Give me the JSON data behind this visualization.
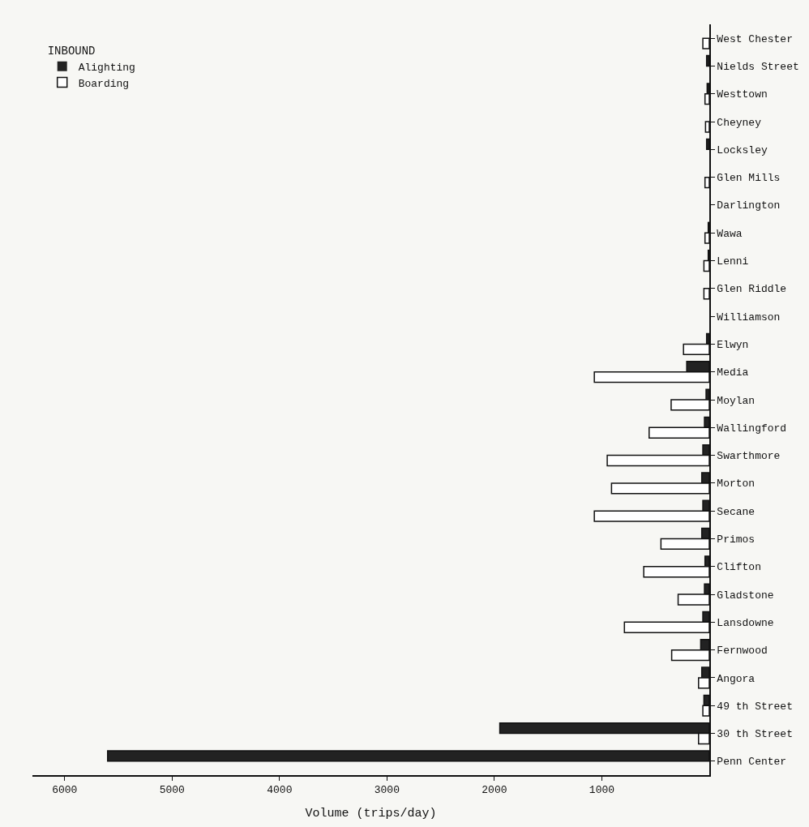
{
  "chart_data": {
    "type": "bar",
    "orientation": "horizontal",
    "legend_title": "INBOUND",
    "xlabel": "Volume (trips/day)",
    "categories": [
      "West Chester",
      "Nields Street",
      "Westtown",
      "Cheyney",
      "Locksley",
      "Glen Mills",
      "Darlington",
      "Wawa",
      "Lenni",
      "Glen Riddle",
      "Williamson",
      "Elwyn",
      "Media",
      "Moylan",
      "Wallingford",
      "Swarthmore",
      "Morton",
      "Secane",
      "Primos",
      "Clifton",
      "Gladstone",
      "Lansdowne",
      "Fernwood",
      "Angora",
      "49 th Street",
      "30 th Street",
      "Penn Center"
    ],
    "series": [
      {
        "name": "Alighting",
        "color": "#222222",
        "values": [
          0,
          25,
          20,
          0,
          25,
          0,
          0,
          10,
          10,
          0,
          0,
          25,
          210,
          30,
          45,
          60,
          70,
          60,
          70,
          40,
          45,
          60,
          80,
          70,
          50,
          1950,
          5600
        ]
      },
      {
        "name": "Boarding",
        "color": "#ffffff",
        "values": [
          60,
          0,
          40,
          35,
          0,
          40,
          0,
          40,
          50,
          50,
          0,
          240,
          1070,
          355,
          560,
          950,
          910,
          1070,
          450,
          610,
          290,
          790,
          350,
          100,
          60,
          100,
          0
        ]
      }
    ],
    "xlim": [
      6300,
      0
    ],
    "xticks": [
      1000,
      2000,
      3000,
      4000,
      5000,
      6000
    ],
    "grid": false,
    "legend": "top left"
  }
}
